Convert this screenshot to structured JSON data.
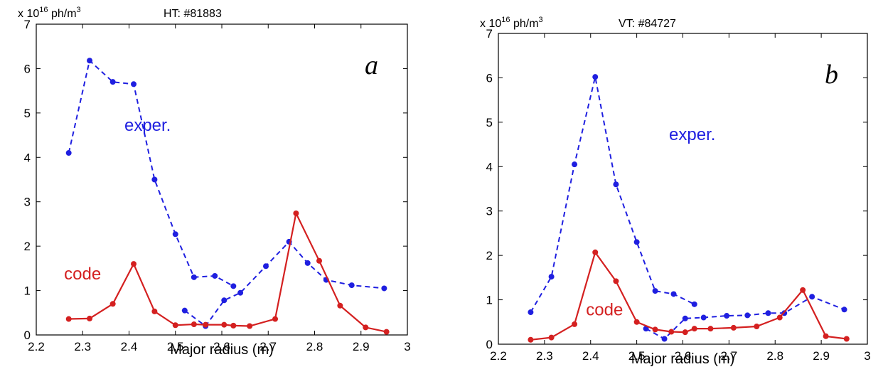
{
  "chart_data": [
    {
      "type": "line",
      "panel_label": "a",
      "units_label": "x 10",
      "units_exp": "16",
      "units_suffix": " ph/m",
      "units_sup": "3",
      "shot_label": "HT: #81883",
      "xlabel": "Major radius (m)",
      "ylabel": "",
      "xlim": [
        2.2,
        3.0
      ],
      "ylim": [
        0,
        7
      ],
      "xticks": [
        "2.2",
        "2.3",
        "2.4",
        "2.5",
        "2.6",
        "2.7",
        "2.8",
        "2.9",
        "3"
      ],
      "yticks": [
        "0",
        "1",
        "2",
        "3",
        "4",
        "5",
        "6",
        "7"
      ],
      "series": [
        {
          "name": "exper.",
          "color": "#1f1fe0",
          "style": "dashed",
          "segments": [
            {
              "x": [
                2.27,
                2.315,
                2.365,
                2.41,
                2.455,
                2.5,
                2.54,
                2.585,
                2.625
              ],
              "y": [
                4.1,
                6.18,
                5.7,
                5.65,
                3.5,
                2.27,
                1.3,
                1.33,
                1.1
              ]
            },
            {
              "x": [
                2.52,
                2.565,
                2.605,
                2.64,
                2.695,
                2.745,
                2.785,
                2.825,
                2.88,
                2.95
              ],
              "y": [
                0.55,
                0.2,
                0.78,
                0.95,
                1.55,
                2.1,
                1.62,
                1.24,
                1.12,
                1.05
              ]
            }
          ]
        },
        {
          "name": "code",
          "color": "#d42020",
          "style": "solid",
          "segments": [
            {
              "x": [
                2.27,
                2.315,
                2.365,
                2.41,
                2.455,
                2.5,
                2.54,
                2.565,
                2.605,
                2.625,
                2.66,
                2.715,
                2.76,
                2.81,
                2.855,
                2.91,
                2.955
              ],
              "y": [
                0.36,
                0.37,
                0.7,
                1.6,
                0.53,
                0.22,
                0.24,
                0.23,
                0.23,
                0.21,
                0.2,
                0.36,
                2.74,
                1.67,
                0.66,
                0.17,
                0.07
              ]
            }
          ]
        }
      ]
    },
    {
      "type": "line",
      "panel_label": "b",
      "units_label": "x 10",
      "units_exp": "16",
      "units_suffix": " ph/m",
      "units_sup": "3",
      "shot_label": "VT: #84727",
      "xlabel": "Major radius (m)",
      "ylabel": "",
      "xlim": [
        2.2,
        3.0
      ],
      "ylim": [
        0,
        7
      ],
      "xticks": [
        "2.2",
        "2.3",
        "2.4",
        "2.5",
        "2.6",
        "2.7",
        "2.8",
        "2.9",
        "3"
      ],
      "yticks": [
        "0",
        "1",
        "2",
        "3",
        "4",
        "5",
        "6",
        "7"
      ],
      "series": [
        {
          "name": "exper.",
          "color": "#1f1fe0",
          "style": "dashed",
          "segments": [
            {
              "x": [
                2.27,
                2.315,
                2.365,
                2.41,
                2.455,
                2.5,
                2.54,
                2.58,
                2.625
              ],
              "y": [
                0.72,
                1.52,
                4.05,
                6.02,
                3.6,
                2.3,
                1.2,
                1.13,
                0.9
              ]
            },
            {
              "x": [
                2.52,
                2.56,
                2.605,
                2.645,
                2.695,
                2.74,
                2.785,
                2.82,
                2.88,
                2.95
              ],
              "y": [
                0.35,
                0.12,
                0.58,
                0.6,
                0.64,
                0.65,
                0.7,
                0.7,
                1.07,
                0.78
              ]
            }
          ]
        },
        {
          "name": "code",
          "color": "#d42020",
          "style": "solid",
          "segments": [
            {
              "x": [
                2.27,
                2.315,
                2.365,
                2.41,
                2.455,
                2.5,
                2.54,
                2.575,
                2.605,
                2.625,
                2.66,
                2.71,
                2.76,
                2.81,
                2.86,
                2.91,
                2.955
              ],
              "y": [
                0.1,
                0.15,
                0.45,
                2.07,
                1.42,
                0.5,
                0.33,
                0.28,
                0.27,
                0.35,
                0.35,
                0.37,
                0.4,
                0.6,
                1.22,
                0.18,
                0.12
              ]
            }
          ]
        }
      ]
    }
  ],
  "annotations": [
    {
      "chart": 0,
      "series": "exper.",
      "text": "exper.",
      "x": 2.39,
      "y": 4.6
    },
    {
      "chart": 0,
      "series": "code",
      "text": "code",
      "x": 2.26,
      "y": 1.25
    },
    {
      "chart": 1,
      "series": "exper.",
      "text": "exper.",
      "x": 2.57,
      "y": 4.6
    },
    {
      "chart": 1,
      "series": "code",
      "text": "code",
      "x": 2.39,
      "y": 0.65
    }
  ]
}
